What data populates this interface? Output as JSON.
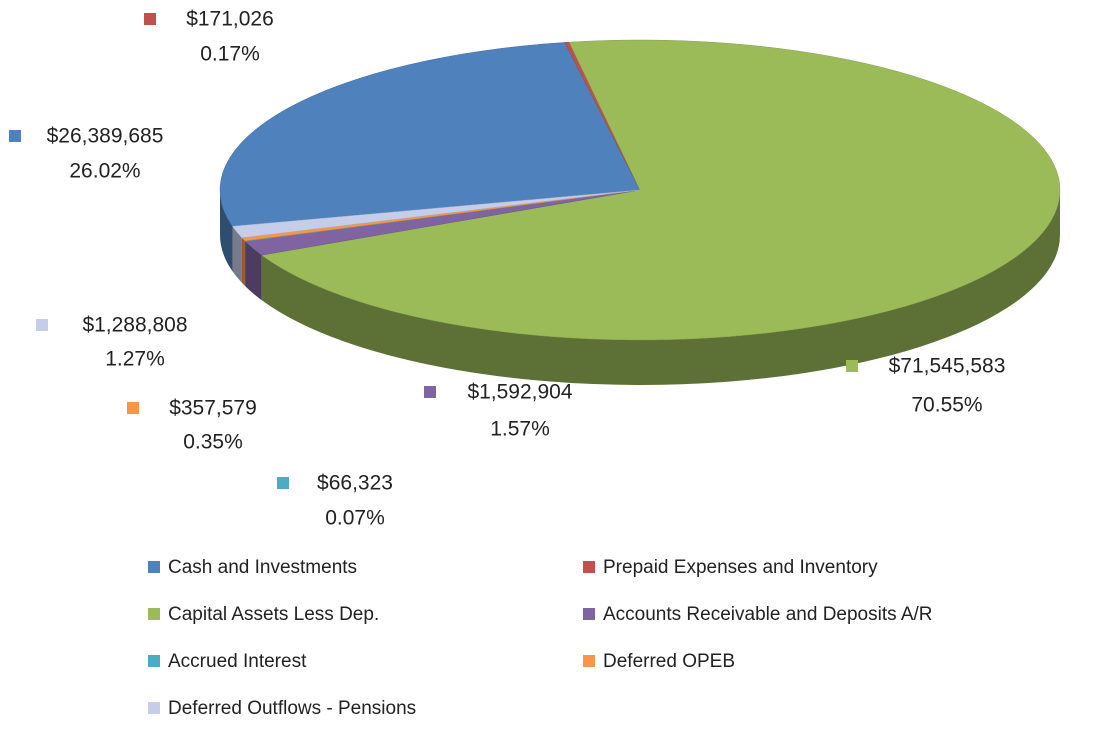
{
  "chart_data": {
    "type": "pie",
    "categories": [
      "Cash and Investments",
      "Prepaid Expenses and Inventory",
      "Capital Assets Less Dep.",
      "Accounts Receivable and Deposits A/R",
      "Accrued Interest",
      "Deferred OPEB",
      "Deferred Outflows - Pensions"
    ],
    "values": [
      26389685,
      171026,
      71545583,
      1592904,
      66323,
      357579,
      1288808
    ],
    "value_labels": [
      "$26,389,685",
      "$171,026",
      "$71,545,583",
      "$1,592,904",
      "$66,323",
      "$357,579",
      "$1,288,808"
    ],
    "percent_labels": [
      "26.02%",
      "0.17%",
      "70.55%",
      "1.57%",
      "0.07%",
      "0.35%",
      "1.27%"
    ],
    "colors": [
      "#4f81bd",
      "#c0504d",
      "#9bbb59",
      "#8064a2",
      "#4bacc6",
      "#f79646",
      "#c5cde8"
    ],
    "legend": "bottom"
  }
}
